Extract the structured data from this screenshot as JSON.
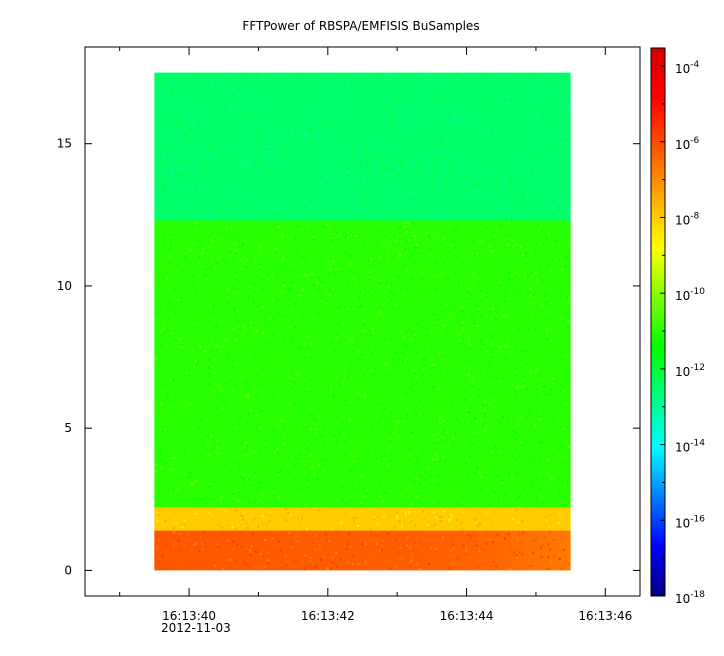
{
  "chart_data": {
    "type": "heatmap",
    "title": "FFTPower of RBSPA/EMFISIS  BuSamples",
    "xlabel": "",
    "ylabel": "",
    "x_axis": {
      "range": [
        "16:13:38.5",
        "16:13:46.5"
      ],
      "major_ticks": [
        "16:13:40",
        "16:13:42",
        "16:13:44",
        "16:13:46"
      ],
      "minor_ticks": [
        "16:13:39",
        "16:13:41",
        "16:13:43",
        "16:13:45"
      ],
      "date_label": "2012-11-03"
    },
    "y_axis": {
      "range": [
        -0.9,
        18.4
      ],
      "ticks": [
        0,
        5,
        10,
        15
      ],
      "tick_labels": [
        "0",
        "5",
        "10",
        "15"
      ]
    },
    "data_extent": {
      "x": [
        "16:13:39.5",
        "16:13:45.5"
      ],
      "y": [
        0.0,
        17.5
      ]
    },
    "colorbar": {
      "scale": "log",
      "range": [
        1e-18,
        0.0003
      ],
      "base": "10",
      "tick_exponents": [
        "-4",
        "-6",
        "-8",
        "-10",
        "-12",
        "-14",
        "-16",
        "-18"
      ],
      "colormap": "rainbow"
    },
    "bands": [
      {
        "y": [
          12.3,
          17.5
        ],
        "power": 3e-13
      },
      {
        "y": [
          2.2,
          12.3
        ],
        "power": 1e-11
      },
      {
        "y": [
          1.4,
          2.2
        ],
        "power": 1e-08
      },
      {
        "y": [
          0.0,
          1.4
        ],
        "power": 5e-07
      }
    ]
  },
  "colors": {
    "colormap": [
      "#00007f",
      "#0000ff",
      "#007fff",
      "#00ffff",
      "#00ff7f",
      "#00ff00",
      "#7fff00",
      "#ffff00",
      "#ffaa00",
      "#ff5500",
      "#ff0000",
      "#d40000"
    ]
  }
}
